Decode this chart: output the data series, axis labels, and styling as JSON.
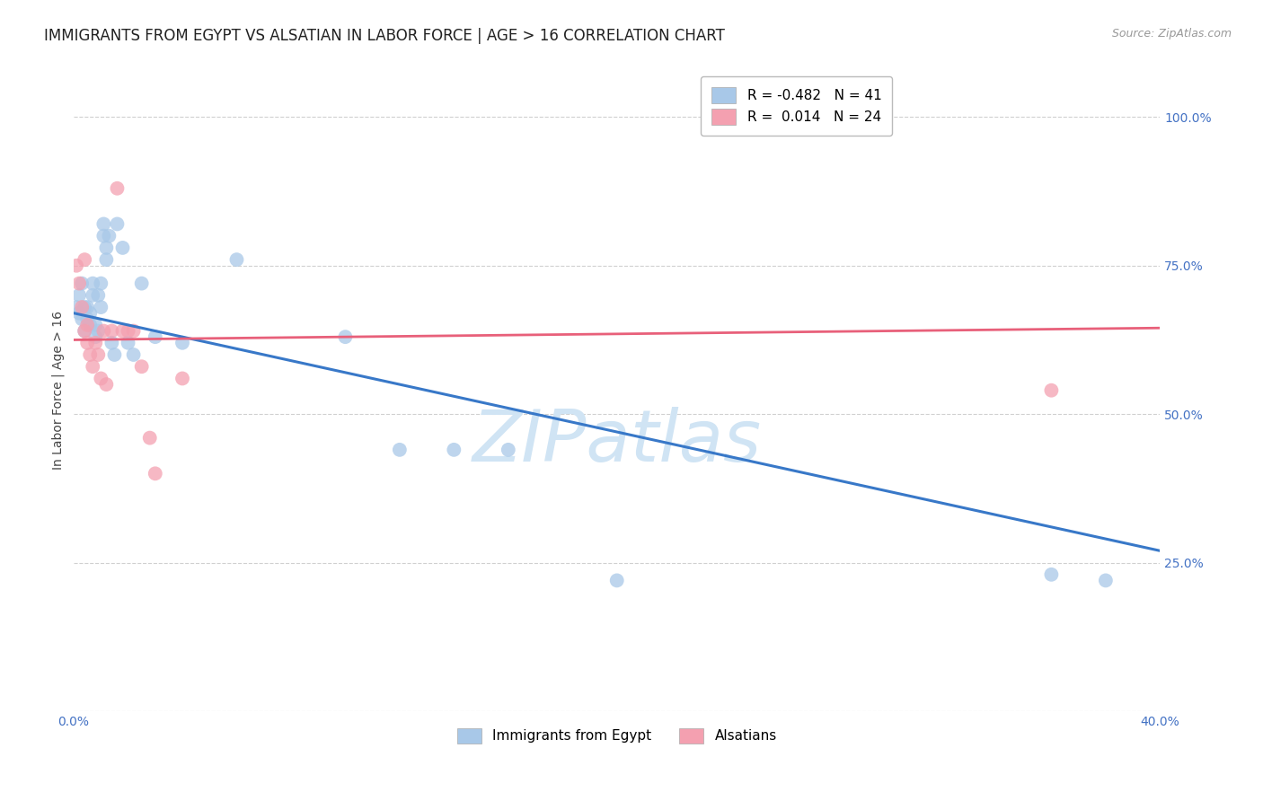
{
  "title": "IMMIGRANTS FROM EGYPT VS ALSATIAN IN LABOR FORCE | AGE > 16 CORRELATION CHART",
  "source": "Source: ZipAtlas.com",
  "ylabel_label": "In Labor Force | Age > 16",
  "xlim": [
    0.0,
    0.4
  ],
  "ylim": [
    0.0,
    1.08
  ],
  "blue_R": -0.482,
  "blue_N": 41,
  "pink_R": 0.014,
  "pink_N": 24,
  "blue_color": "#a8c8e8",
  "pink_color": "#f4a0b0",
  "blue_line_color": "#3878c8",
  "pink_line_color": "#e8607a",
  "background_color": "#ffffff",
  "grid_color": "#d0d0d0",
  "watermark_color": "#d0e4f4",
  "right_tick_color": "#4472c4",
  "bottom_tick_color": "#4472c4",
  "title_fontsize": 12,
  "tick_fontsize": 10,
  "legend_fontsize": 11,
  "blue_x": [
    0.001,
    0.002,
    0.002,
    0.003,
    0.003,
    0.004,
    0.004,
    0.005,
    0.005,
    0.006,
    0.006,
    0.007,
    0.007,
    0.008,
    0.008,
    0.009,
    0.009,
    0.01,
    0.01,
    0.011,
    0.011,
    0.012,
    0.012,
    0.013,
    0.014,
    0.015,
    0.016,
    0.018,
    0.02,
    0.022,
    0.025,
    0.03,
    0.04,
    0.06,
    0.1,
    0.12,
    0.14,
    0.16,
    0.2,
    0.36,
    0.38
  ],
  "blue_y": [
    0.68,
    0.7,
    0.67,
    0.66,
    0.72,
    0.68,
    0.64,
    0.68,
    0.66,
    0.65,
    0.67,
    0.7,
    0.72,
    0.65,
    0.63,
    0.7,
    0.64,
    0.68,
    0.72,
    0.82,
    0.8,
    0.78,
    0.76,
    0.8,
    0.62,
    0.6,
    0.82,
    0.78,
    0.62,
    0.6,
    0.72,
    0.63,
    0.62,
    0.76,
    0.63,
    0.44,
    0.44,
    0.44,
    0.22,
    0.23,
    0.22
  ],
  "pink_x": [
    0.001,
    0.002,
    0.003,
    0.004,
    0.004,
    0.005,
    0.005,
    0.006,
    0.007,
    0.008,
    0.009,
    0.01,
    0.011,
    0.012,
    0.014,
    0.016,
    0.018,
    0.02,
    0.022,
    0.025,
    0.028,
    0.03,
    0.04,
    0.36
  ],
  "pink_y": [
    0.75,
    0.72,
    0.68,
    0.76,
    0.64,
    0.65,
    0.62,
    0.6,
    0.58,
    0.62,
    0.6,
    0.56,
    0.64,
    0.55,
    0.64,
    0.88,
    0.64,
    0.64,
    0.64,
    0.58,
    0.46,
    0.4,
    0.56,
    0.54
  ],
  "blue_line_x0": 0.0,
  "blue_line_y0": 0.67,
  "blue_line_x1": 0.4,
  "blue_line_y1": 0.27,
  "pink_line_x0": 0.0,
  "pink_line_y0": 0.625,
  "pink_line_x1": 0.4,
  "pink_line_y1": 0.645
}
